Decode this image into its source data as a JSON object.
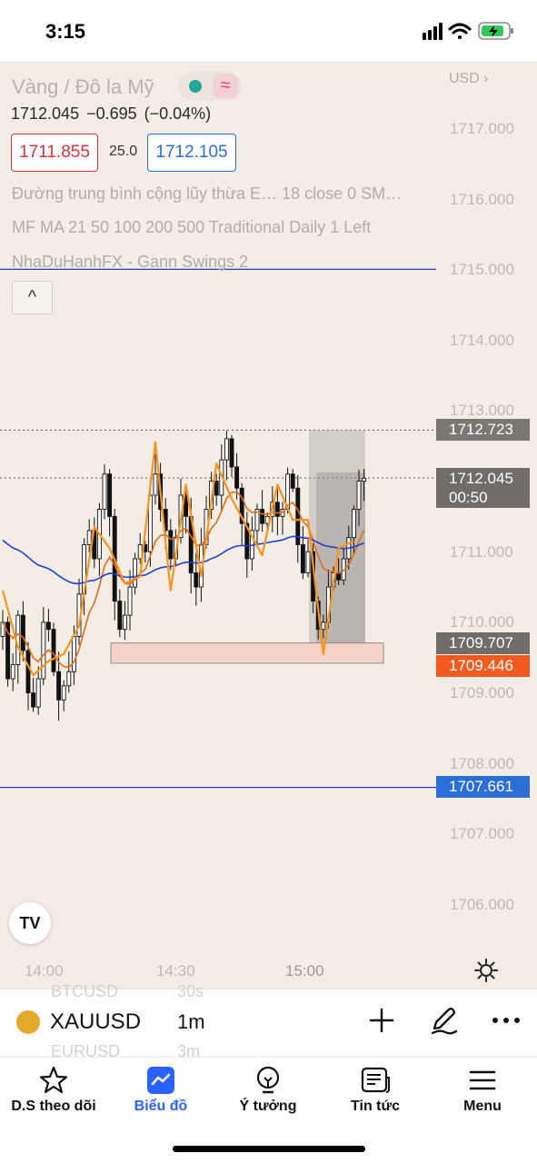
{
  "status": {
    "time": "3:15"
  },
  "header": {
    "symbol_title": "Vàng / Đô la Mỹ",
    "last_price": "1712.045",
    "change": "−0.695",
    "change_pct": "(−0.04%)",
    "bid": "1711.855",
    "spread": "25.0",
    "ask": "1712.105",
    "currency": "USD"
  },
  "indicators": [
    "Đường trung bình cộng lũy thừa E…   18 close 0 SM…",
    "MF MA 21 50 100 200 500 Traditional Daily 1 Left",
    "NhaDuHanhFX - Gann Swings 2"
  ],
  "collapse_glyph": "^",
  "price_axis": [
    "1717.000",
    "1716.000",
    "1715.000",
    "1714.000",
    "1713.000",
    "1711.000",
    "1710.000",
    "1709.000",
    "1708.000",
    "1707.000",
    "1706.000"
  ],
  "price_tags": {
    "high_marker": "1712.723",
    "current_price": "1712.045",
    "countdown": "00:50",
    "box_low": "1709.707",
    "orange_level": "1709.446",
    "blue_level": "1707.661"
  },
  "time_axis": [
    "14:00",
    "14:30",
    "15:00"
  ],
  "logo_text": "TV",
  "toolbar": {
    "ticker": "XAUUSD",
    "interval": "1m",
    "ghost_items": [
      "BTCUSD",
      "30s",
      "EURUSD",
      "3m"
    ]
  },
  "tabs": [
    {
      "label": "D.S theo dõi",
      "icon": "star-icon"
    },
    {
      "label": "Biểu đồ",
      "icon": "chart-icon"
    },
    {
      "label": "Ý tưởng",
      "icon": "lightbulb-icon"
    },
    {
      "label": "Tin tức",
      "icon": "news-icon"
    },
    {
      "label": "Menu",
      "icon": "menu-icon"
    }
  ],
  "colors": {
    "background": "#f3ede6",
    "bid_red": "#d9323f",
    "ask_blue": "#2b6fd6",
    "ema_orange": "#f7931e",
    "ma_blue": "#1e3fd0",
    "active_tab": "#2962ff",
    "orange_tag": "#f25b1f"
  },
  "chart_data": {
    "type": "candlestick",
    "ylim": [
      1705.5,
      1717.4
    ],
    "price_levels": {
      "high_marker": 1712.723,
      "current": 1712.045,
      "zone_low": 1709.707,
      "support": 1709.446,
      "blue_line_bottom": 1707.661,
      "blue_line_top": 1715.0
    },
    "closes": [
      1710.0,
      1709.2,
      1709.4,
      1710.1,
      1709.6,
      1709.0,
      1708.8,
      1709.2,
      1710.0,
      1709.9,
      1709.3,
      1708.9,
      1709.1,
      1709.3,
      1709.8,
      1710.4,
      1711.1,
      1711.3,
      1710.9,
      1711.6,
      1712.1,
      1711.5,
      1710.3,
      1709.9,
      1710.1,
      1710.5,
      1710.9,
      1711.1,
      1711.0,
      1711.8,
      1712.1,
      1711.6,
      1711.3,
      1710.9,
      1711.2,
      1711.8,
      1711.5,
      1710.7,
      1710.5,
      1711.1,
      1711.6,
      1712.0,
      1711.8,
      1712.3,
      1712.6,
      1712.2,
      1711.9,
      1711.4,
      1710.9,
      1711.3,
      1711.6,
      1711.4,
      1711.5,
      1711.7,
      1711.5,
      1711.6,
      1712.1,
      1711.9,
      1711.1,
      1710.7,
      1711.0,
      1710.3,
      1709.9,
      1710.0,
      1710.5,
      1710.7,
      1710.6,
      1710.9,
      1711.2,
      1711.6,
      1712.0,
      1712.04
    ]
  }
}
